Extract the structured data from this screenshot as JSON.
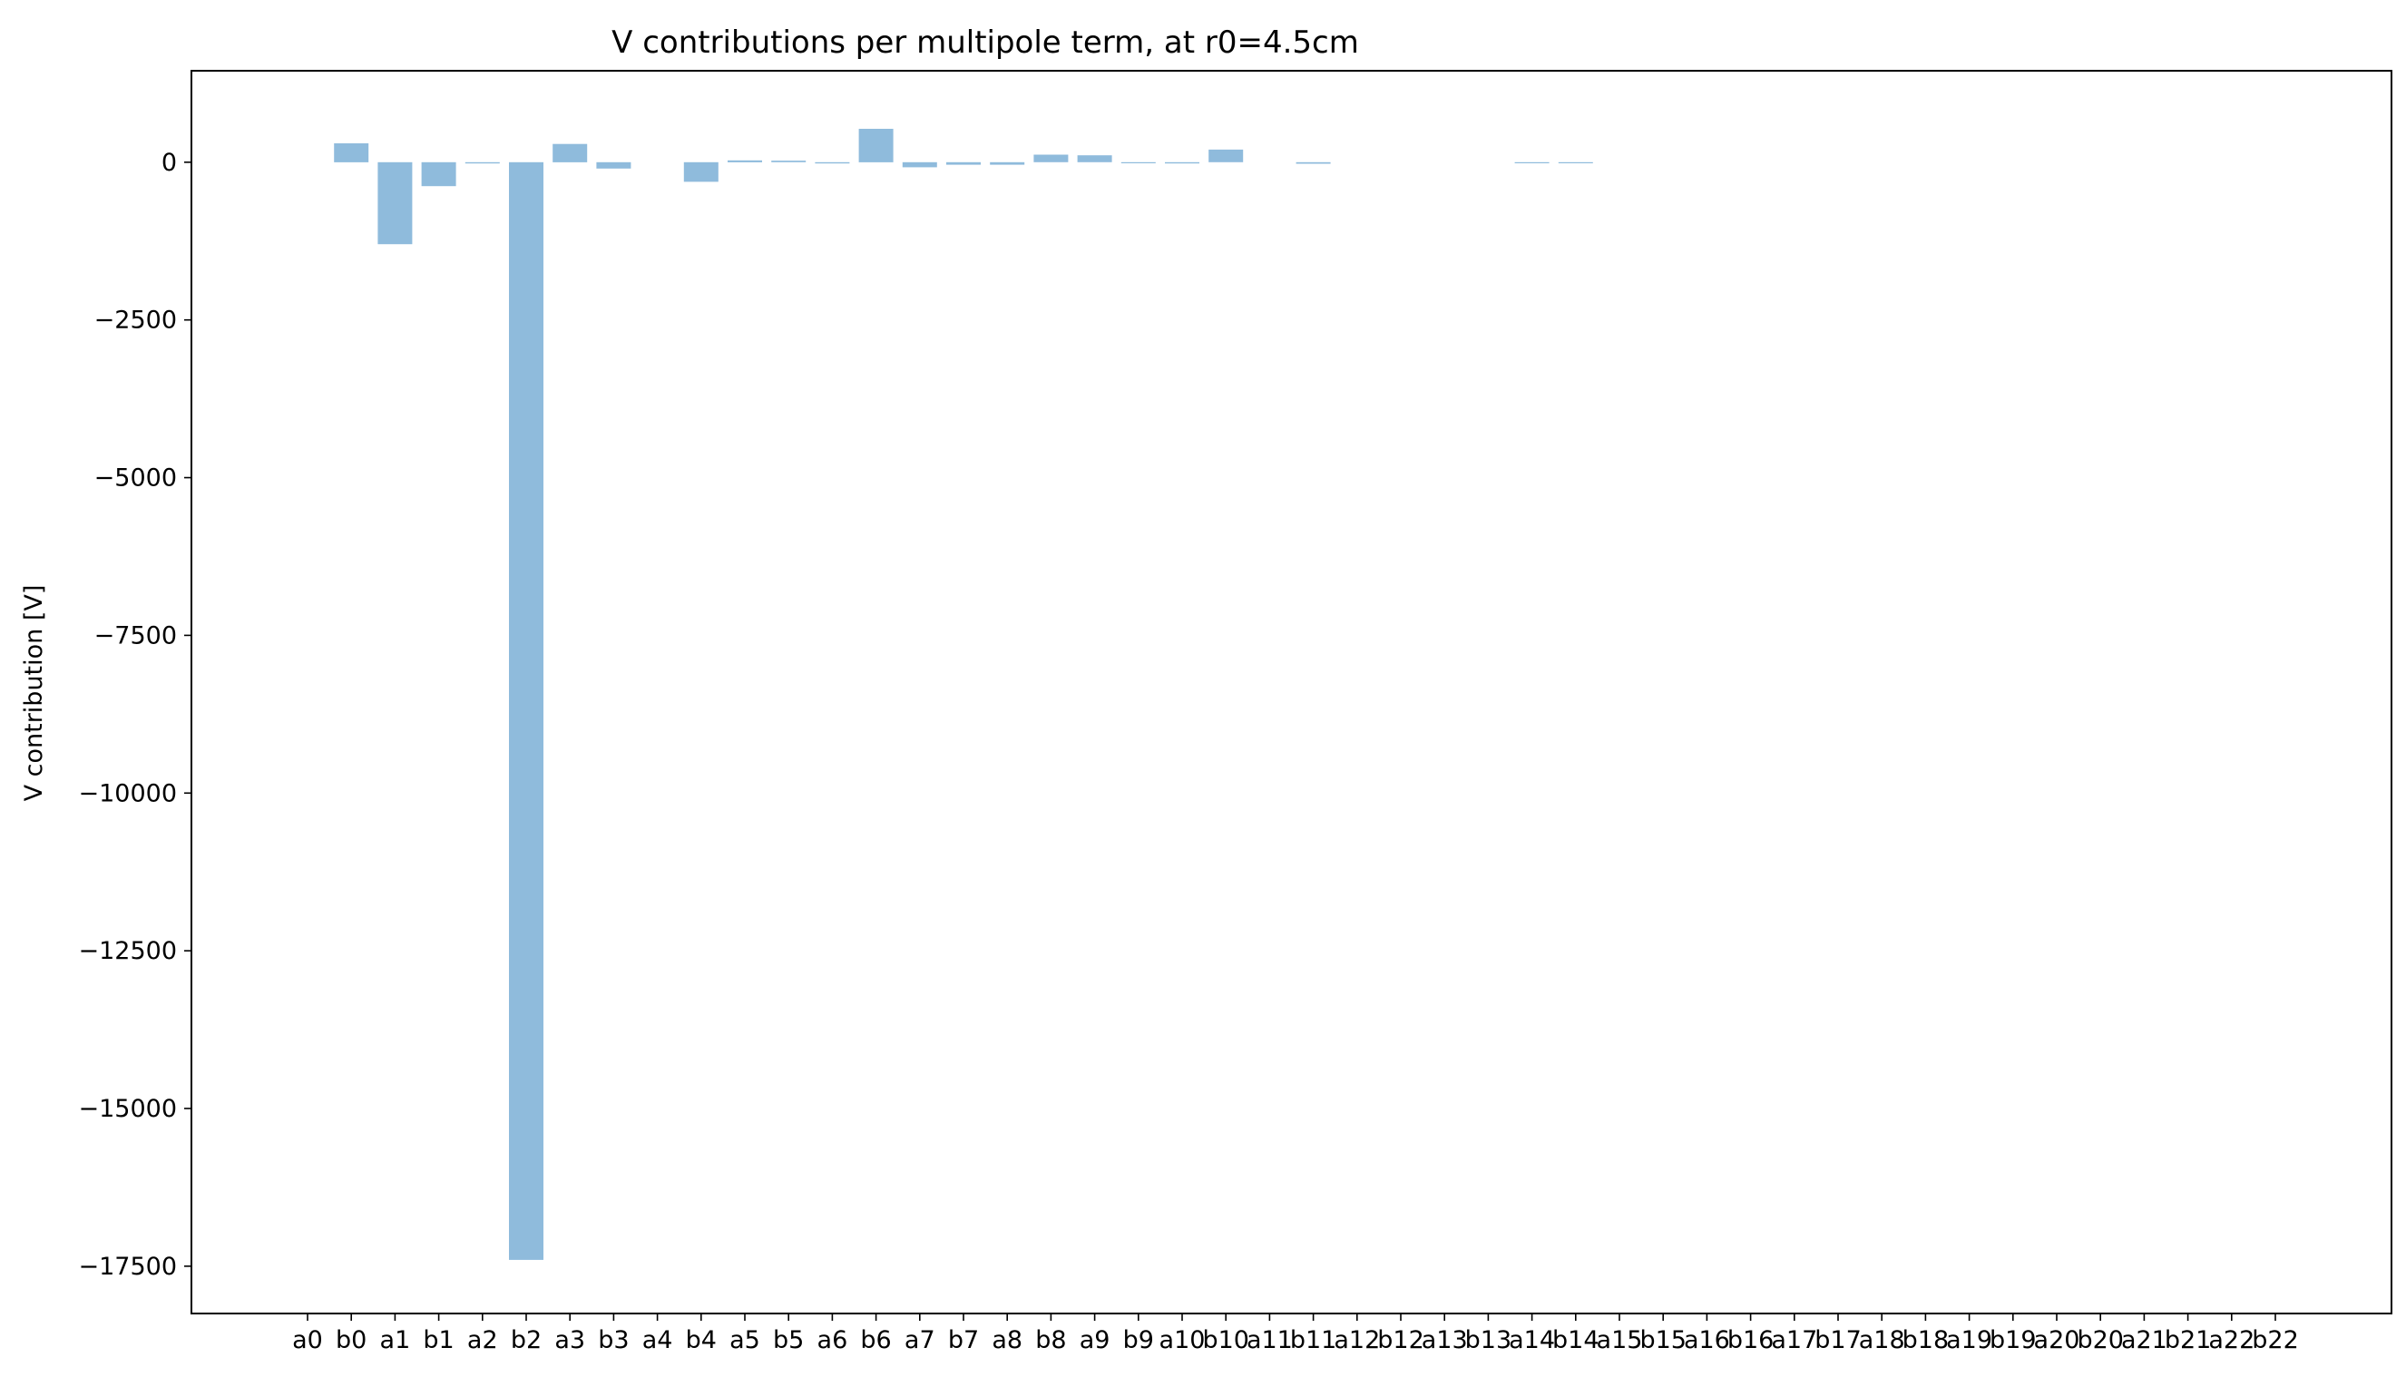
{
  "chart_data": {
    "type": "bar",
    "title": "V contributions per multipole term, at r0=4.5cm",
    "xlabel": "",
    "ylabel": "V contribution [V]",
    "ylim": [
      -18250,
      1450
    ],
    "yticks": [
      0,
      -2500,
      -5000,
      -7500,
      -10000,
      -12500,
      -15000,
      -17500
    ],
    "ytick_labels": [
      "0",
      "−2500",
      "−5000",
      "−7500",
      "−10000",
      "−12500",
      "−15000",
      "−17500"
    ],
    "grid": false,
    "bar_color": "#8fbbdc",
    "categories": [
      "a0",
      "b0",
      "a1",
      "b1",
      "a2",
      "b2",
      "a3",
      "b3",
      "a4",
      "b4",
      "a5",
      "b5",
      "a6",
      "b6",
      "a7",
      "b7",
      "a8",
      "b8",
      "a9",
      "b9",
      "a10",
      "b10",
      "a11",
      "b11",
      "a12",
      "b12",
      "a13",
      "b13",
      "a14",
      "b14",
      "a15",
      "b15",
      "a16",
      "b16",
      "a17",
      "b17",
      "a18",
      "b18",
      "a19",
      "b19",
      "a20",
      "b20",
      "a21",
      "b21",
      "a22",
      "b22"
    ],
    "values": [
      0,
      300,
      -1300,
      -380,
      -20,
      -17400,
      290,
      -100,
      0,
      -310,
      30,
      25,
      -20,
      530,
      -80,
      -40,
      -40,
      120,
      110,
      -15,
      -20,
      200,
      0,
      -25,
      0,
      0,
      0,
      0,
      -12,
      -12,
      0,
      0,
      0,
      0,
      0,
      0,
      0,
      0,
      0,
      0,
      0,
      0,
      0,
      0,
      0,
      0
    ]
  }
}
